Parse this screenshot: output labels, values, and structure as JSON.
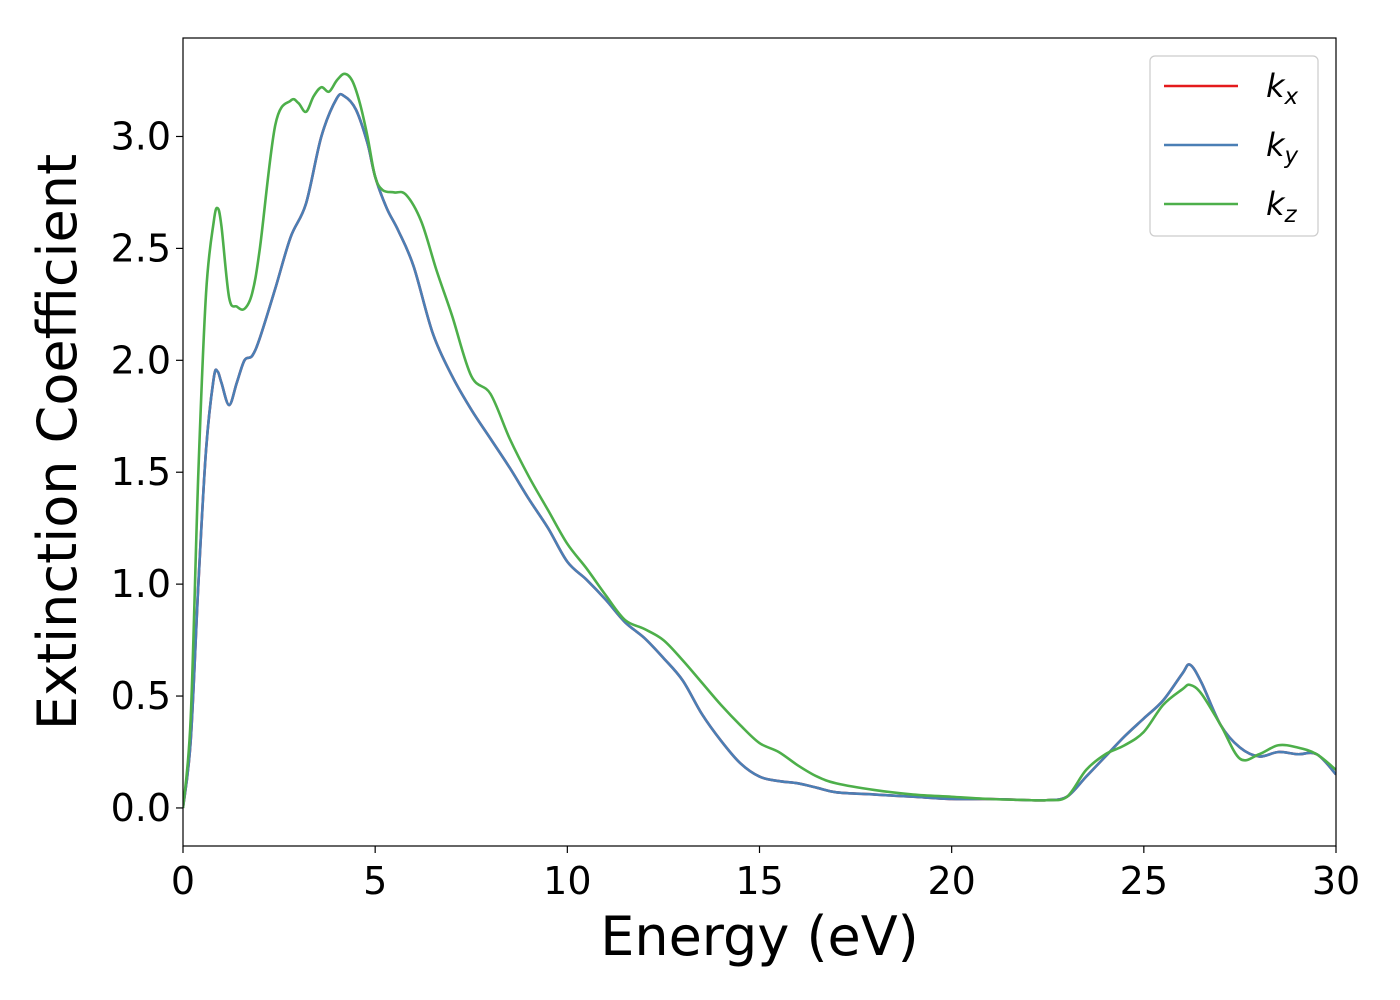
{
  "chart_data": {
    "type": "line",
    "title": "",
    "xlabel": "Energy (eV)",
    "ylabel": "Extinction Coefficient",
    "xlim": [
      0,
      30
    ],
    "ylim": [
      -0.17,
      3.44
    ],
    "xticks": [
      0,
      5,
      10,
      15,
      20,
      25,
      30
    ],
    "xtick_labels": [
      "0",
      "5",
      "10",
      "15",
      "20",
      "25",
      "30"
    ],
    "yticks": [
      0.0,
      0.5,
      1.0,
      1.5,
      2.0,
      2.5,
      3.0
    ],
    "ytick_labels": [
      "0.0",
      "0.5",
      "1.0",
      "1.5",
      "2.0",
      "2.5",
      "3.0"
    ],
    "grid": false,
    "legend_position": "top-right",
    "series": [
      {
        "name": "k_x",
        "label_base": "k",
        "label_sub": "x",
        "color": "#e41a1c",
        "x": [
          0,
          0.2,
          0.4,
          0.6,
          0.8,
          0.9,
          1.0,
          1.2,
          1.4,
          1.6,
          1.8,
          2.0,
          2.4,
          2.8,
          3.2,
          3.6,
          4.0,
          4.2,
          4.5,
          4.8,
          5.0,
          5.3,
          5.6,
          6.0,
          6.5,
          7.0,
          7.5,
          8.0,
          8.5,
          9.0,
          9.5,
          10.0,
          10.5,
          11.0,
          11.5,
          12.0,
          12.5,
          13.0,
          13.5,
          14.0,
          14.5,
          15.0,
          15.5,
          16.0,
          16.5,
          17.0,
          18.0,
          19.0,
          20.0,
          21.0,
          22.0,
          22.5,
          23.0,
          23.5,
          24.0,
          24.5,
          25.0,
          25.5,
          26.0,
          26.2,
          26.5,
          27.0,
          27.5,
          28.0,
          28.5,
          29.0,
          29.5,
          30.0
        ],
        "y": [
          0.0,
          0.3,
          1.0,
          1.6,
          1.92,
          1.95,
          1.9,
          1.8,
          1.9,
          2.0,
          2.02,
          2.1,
          2.32,
          2.55,
          2.7,
          3.0,
          3.17,
          3.18,
          3.12,
          2.97,
          2.82,
          2.68,
          2.58,
          2.42,
          2.12,
          1.93,
          1.78,
          1.65,
          1.52,
          1.38,
          1.25,
          1.1,
          1.02,
          0.93,
          0.83,
          0.76,
          0.67,
          0.57,
          0.42,
          0.3,
          0.2,
          0.14,
          0.12,
          0.11,
          0.09,
          0.07,
          0.06,
          0.05,
          0.04,
          0.04,
          0.035,
          0.035,
          0.05,
          0.14,
          0.23,
          0.32,
          0.4,
          0.48,
          0.6,
          0.64,
          0.56,
          0.37,
          0.27,
          0.23,
          0.25,
          0.24,
          0.24,
          0.15
        ]
      },
      {
        "name": "k_y",
        "label_base": "k",
        "label_sub": "y",
        "color": "#4a7fb5",
        "x": [
          0,
          0.2,
          0.4,
          0.6,
          0.8,
          0.9,
          1.0,
          1.2,
          1.4,
          1.6,
          1.8,
          2.0,
          2.4,
          2.8,
          3.2,
          3.6,
          4.0,
          4.2,
          4.5,
          4.8,
          5.0,
          5.3,
          5.6,
          6.0,
          6.5,
          7.0,
          7.5,
          8.0,
          8.5,
          9.0,
          9.5,
          10.0,
          10.5,
          11.0,
          11.5,
          12.0,
          12.5,
          13.0,
          13.5,
          14.0,
          14.5,
          15.0,
          15.5,
          16.0,
          16.5,
          17.0,
          18.0,
          19.0,
          20.0,
          21.0,
          22.0,
          22.5,
          23.0,
          23.5,
          24.0,
          24.5,
          25.0,
          25.5,
          26.0,
          26.2,
          26.5,
          27.0,
          27.5,
          28.0,
          28.5,
          29.0,
          29.5,
          30.0
        ],
        "y": [
          0.0,
          0.3,
          1.0,
          1.6,
          1.92,
          1.95,
          1.9,
          1.8,
          1.9,
          2.0,
          2.02,
          2.1,
          2.32,
          2.55,
          2.7,
          3.0,
          3.17,
          3.18,
          3.12,
          2.97,
          2.82,
          2.68,
          2.58,
          2.42,
          2.12,
          1.93,
          1.78,
          1.65,
          1.52,
          1.38,
          1.25,
          1.1,
          1.02,
          0.93,
          0.83,
          0.76,
          0.67,
          0.57,
          0.42,
          0.3,
          0.2,
          0.14,
          0.12,
          0.11,
          0.09,
          0.07,
          0.06,
          0.05,
          0.04,
          0.04,
          0.035,
          0.035,
          0.05,
          0.14,
          0.23,
          0.32,
          0.4,
          0.48,
          0.6,
          0.64,
          0.56,
          0.37,
          0.27,
          0.23,
          0.25,
          0.24,
          0.24,
          0.15
        ]
      },
      {
        "name": "k_z",
        "label_base": "k",
        "label_sub": "z",
        "color": "#4daf4a",
        "x": [
          0,
          0.2,
          0.4,
          0.6,
          0.8,
          0.9,
          1.0,
          1.2,
          1.4,
          1.6,
          1.8,
          2.0,
          2.4,
          2.8,
          3.0,
          3.2,
          3.4,
          3.6,
          3.8,
          4.0,
          4.2,
          4.4,
          4.6,
          4.8,
          5.0,
          5.2,
          5.5,
          5.8,
          6.2,
          6.6,
          7.0,
          7.5,
          8.0,
          8.5,
          9.0,
          9.5,
          10.0,
          10.5,
          11.0,
          11.5,
          12.0,
          12.5,
          13.0,
          13.5,
          14.0,
          14.5,
          15.0,
          15.5,
          16.0,
          16.5,
          17.0,
          18.0,
          19.0,
          20.0,
          21.0,
          22.0,
          22.5,
          23.0,
          23.5,
          24.0,
          24.5,
          25.0,
          25.5,
          26.0,
          26.2,
          26.5,
          27.0,
          27.5,
          28.0,
          28.5,
          29.0,
          29.5,
          30.0
        ],
        "y": [
          0.0,
          0.4,
          1.5,
          2.3,
          2.62,
          2.68,
          2.6,
          2.28,
          2.24,
          2.23,
          2.3,
          2.5,
          3.05,
          3.16,
          3.15,
          3.11,
          3.18,
          3.22,
          3.2,
          3.25,
          3.28,
          3.25,
          3.15,
          3.0,
          2.82,
          2.76,
          2.75,
          2.74,
          2.62,
          2.4,
          2.2,
          1.93,
          1.85,
          1.65,
          1.48,
          1.33,
          1.18,
          1.07,
          0.95,
          0.84,
          0.8,
          0.75,
          0.66,
          0.56,
          0.46,
          0.37,
          0.29,
          0.25,
          0.19,
          0.14,
          0.11,
          0.08,
          0.06,
          0.05,
          0.04,
          0.035,
          0.035,
          0.05,
          0.17,
          0.24,
          0.28,
          0.34,
          0.46,
          0.53,
          0.55,
          0.51,
          0.37,
          0.22,
          0.24,
          0.28,
          0.27,
          0.24,
          0.17
        ]
      }
    ]
  }
}
